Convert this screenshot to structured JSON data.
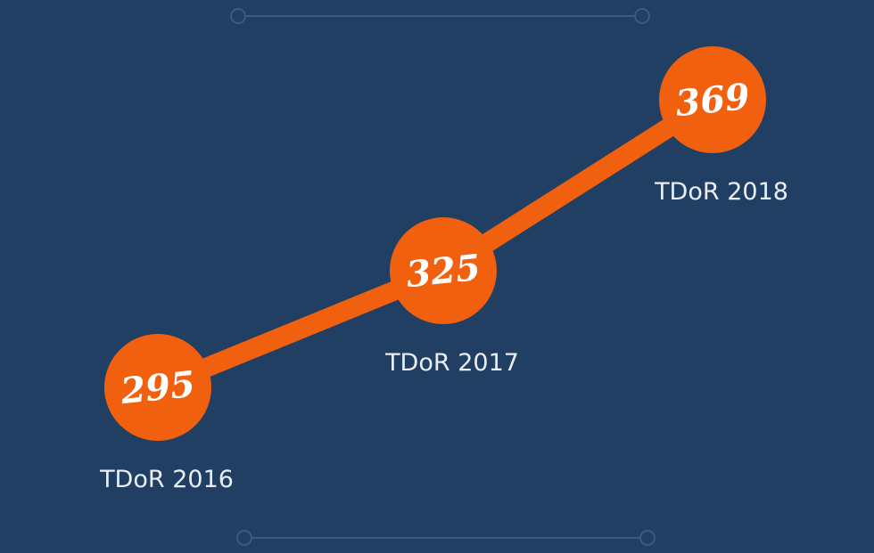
{
  "chart_data": {
    "type": "line",
    "categories": [
      "TDoR 2016",
      "TDoR 2017",
      "TDoR 2018"
    ],
    "values": [
      295,
      325,
      369
    ],
    "value_labels": [
      "295",
      "325",
      "369"
    ],
    "grid": false,
    "legend": "none"
  },
  "colors": {
    "background": "#213e63",
    "accent": "#f0600f",
    "text": "#e9eef5",
    "decoration": "#3b5b84"
  }
}
